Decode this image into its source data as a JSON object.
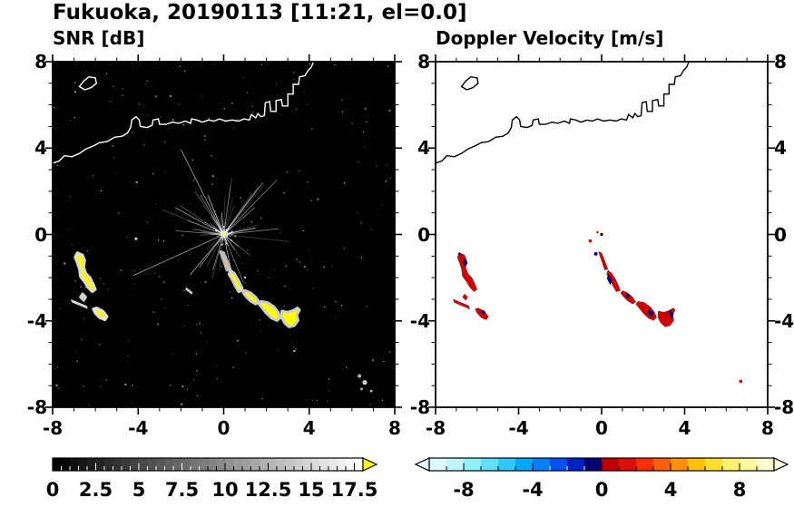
{
  "chart_data": {
    "type": "heatmap",
    "figure_title": "Fukuoka, 20190113 [11:21, el=0.0]",
    "panels": [
      {
        "id": "snr",
        "title": "SNR [dB]",
        "background": "#000000",
        "coast_color": "#ffffff",
        "xlim": [
          -8,
          8
        ],
        "ylim": [
          -8,
          8
        ],
        "xticks": [
          -8,
          -4,
          0,
          4,
          8
        ],
        "yticks": [
          8,
          4,
          0,
          -4,
          -8
        ],
        "xtick_labels": [
          "-8",
          "-4",
          "0",
          "4",
          "8"
        ],
        "ytick_labels": [
          "8",
          "4",
          "0",
          "-4",
          "-8"
        ],
        "colorbar": {
          "range": [
            0,
            18
          ],
          "tick_step": 0.5,
          "major_step": 2.5,
          "tick_labels": [
            "0",
            "2.5",
            "5",
            "7.5",
            "10",
            "12.5",
            "15",
            "17.5"
          ],
          "ramp": [
            "#000000",
            "#ffffff"
          ],
          "over_arrow_color": "#ffff00"
        }
      },
      {
        "id": "vel",
        "title": "Doppler Velocity [m/s]",
        "background": "#ffffff",
        "coast_color": "#000000",
        "xlim": [
          -8,
          8
        ],
        "ylim": [
          -8,
          8
        ],
        "xticks": [
          -8,
          -4,
          0,
          4,
          8
        ],
        "yticks": [
          8,
          4,
          0,
          -4,
          -8
        ],
        "xtick_labels": [
          "-8",
          "-4",
          "0",
          "4",
          "8"
        ],
        "ytick_labels": [
          "8",
          "4",
          "0",
          "-4",
          "-8"
        ],
        "ytick_labels_right": [
          "8",
          "4",
          "0",
          "-4",
          "-8"
        ],
        "colorbar": {
          "range": [
            -10,
            10
          ],
          "tick_step": 1,
          "major_step": 4,
          "tick_labels": [
            "-8",
            "-4",
            "0",
            "4",
            "8"
          ],
          "colors": [
            "#dffaff",
            "#bff5ff",
            "#8fefff",
            "#5fe0ff",
            "#2fc8ff",
            "#00aaff",
            "#0080ff",
            "#0050f0",
            "#0020c0",
            "#000070",
            "#c00000",
            "#e01000",
            "#ff3000",
            "#ff6000",
            "#ff9000",
            "#ffc000",
            "#ffe030",
            "#fff070",
            "#fffaa0",
            "#fffdd0"
          ],
          "under_arrow_color": "#eaffff",
          "over_arrow_color": "#fffde8"
        }
      }
    ],
    "map": {
      "coastline": [
        [
          -8.0,
          3.3
        ],
        [
          -7.7,
          3.4
        ],
        [
          -7.45,
          3.65
        ],
        [
          -7.1,
          3.6
        ],
        [
          -6.75,
          3.75
        ],
        [
          -6.45,
          3.95
        ],
        [
          -6.1,
          4.1
        ],
        [
          -5.8,
          4.25
        ],
        [
          -5.45,
          4.3
        ],
        [
          -5.1,
          4.5
        ],
        [
          -4.75,
          4.55
        ],
        [
          -4.5,
          4.7
        ],
        [
          -4.35,
          4.95
        ],
        [
          -4.3,
          5.3
        ],
        [
          -4.1,
          5.45
        ],
        [
          -3.95,
          5.3
        ],
        [
          -3.9,
          5.0
        ],
        [
          -3.6,
          4.95
        ],
        [
          -3.35,
          5.05
        ],
        [
          -3.3,
          5.3
        ],
        [
          -3.05,
          5.35
        ],
        [
          -3.0,
          5.1
        ],
        [
          -2.7,
          5.1
        ],
        [
          -2.4,
          5.2
        ],
        [
          -2.1,
          5.15
        ],
        [
          -1.8,
          5.25
        ],
        [
          -1.55,
          5.15
        ],
        [
          -1.5,
          5.35
        ],
        [
          -1.25,
          5.3
        ],
        [
          -1.0,
          5.2
        ],
        [
          -0.7,
          5.3
        ],
        [
          -0.45,
          5.25
        ],
        [
          -0.2,
          5.35
        ],
        [
          0.1,
          5.25
        ],
        [
          0.4,
          5.3
        ],
        [
          0.7,
          5.25
        ],
        [
          0.95,
          5.35
        ],
        [
          1.2,
          5.3
        ],
        [
          1.3,
          5.55
        ],
        [
          1.5,
          5.4
        ],
        [
          1.6,
          5.6
        ],
        [
          1.75,
          5.45
        ],
        [
          1.9,
          5.5
        ],
        [
          1.95,
          6.1
        ],
        [
          2.15,
          6.15
        ],
        [
          2.2,
          5.7
        ],
        [
          2.45,
          5.7
        ],
        [
          2.45,
          6.2
        ],
        [
          2.7,
          6.25
        ],
        [
          2.75,
          5.95
        ],
        [
          3.0,
          5.95
        ],
        [
          3.0,
          6.5
        ],
        [
          3.25,
          6.5
        ],
        [
          3.25,
          6.95
        ],
        [
          3.5,
          6.95
        ],
        [
          3.55,
          7.3
        ],
        [
          3.8,
          7.35
        ],
        [
          3.95,
          7.6
        ],
        [
          4.1,
          7.75
        ],
        [
          4.2,
          8.0
        ]
      ],
      "island": [
        [
          -6.75,
          6.85
        ],
        [
          -6.55,
          7.1
        ],
        [
          -6.3,
          7.3
        ],
        [
          -6.0,
          7.25
        ],
        [
          -5.95,
          7.0
        ],
        [
          -6.2,
          6.8
        ],
        [
          -6.5,
          6.7
        ]
      ]
    },
    "echoes": [
      {
        "pts": [
          [
            -6.85,
            -0.85
          ],
          [
            -6.6,
            -0.95
          ],
          [
            -6.5,
            -1.2
          ],
          [
            -6.55,
            -1.5
          ],
          [
            -6.45,
            -1.8
          ],
          [
            -6.25,
            -2.0
          ],
          [
            -6.1,
            -2.3
          ],
          [
            -6.0,
            -2.55
          ],
          [
            -6.15,
            -2.65
          ],
          [
            -6.35,
            -2.45
          ],
          [
            -6.5,
            -2.2
          ],
          [
            -6.7,
            -1.95
          ],
          [
            -6.75,
            -1.6
          ],
          [
            -6.85,
            -1.3
          ],
          [
            -6.95,
            -1.05
          ]
        ],
        "snr": "#ffff00",
        "halo": "#d8d8d8",
        "vel": "#d00000"
      },
      {
        "pts": [
          [
            -6.6,
            -2.75
          ],
          [
            -6.45,
            -2.9
          ],
          [
            -6.55,
            -3.05
          ],
          [
            -6.7,
            -2.9
          ]
        ],
        "snr": "#ffff00",
        "halo": "#cccccc",
        "vel": "#d00000"
      },
      {
        "pts": [
          [
            -7.15,
            -3.0
          ],
          [
            -6.4,
            -3.3
          ],
          [
            -6.35,
            -3.45
          ],
          [
            -7.1,
            -3.15
          ]
        ],
        "snr": "#d5d5d5",
        "halo": null,
        "vel": "#cc0000"
      },
      {
        "pts": [
          [
            -5.95,
            -3.4
          ],
          [
            -5.65,
            -3.55
          ],
          [
            -5.45,
            -3.8
          ],
          [
            -5.55,
            -3.95
          ],
          [
            -5.8,
            -3.85
          ],
          [
            -6.0,
            -3.65
          ],
          [
            -6.1,
            -3.45
          ]
        ],
        "snr": "#ffff00",
        "halo": "#e0e0e0",
        "vel": "#d00000"
      },
      {
        "pts": [
          [
            -0.15,
            -0.8
          ],
          [
            0.0,
            -0.85
          ],
          [
            0.3,
            -1.6
          ],
          [
            0.15,
            -1.65
          ]
        ],
        "snr": "#ffff00",
        "halo": "#bbbbbb",
        "vel": "#d00000"
      },
      {
        "pts": [
          [
            0.3,
            -1.65
          ],
          [
            0.5,
            -1.8
          ],
          [
            0.68,
            -2.1
          ],
          [
            0.85,
            -2.45
          ],
          [
            0.9,
            -2.6
          ],
          [
            0.7,
            -2.65
          ],
          [
            0.55,
            -2.4
          ],
          [
            0.4,
            -2.1
          ],
          [
            0.25,
            -1.85
          ]
        ],
        "snr": "#ffff00",
        "halo": "#cccccc",
        "vel": "#d00000"
      },
      {
        "pts": [
          [
            1.0,
            -2.6
          ],
          [
            1.25,
            -2.7
          ],
          [
            1.5,
            -2.9
          ],
          [
            1.65,
            -3.12
          ],
          [
            1.5,
            -3.22
          ],
          [
            1.25,
            -3.08
          ],
          [
            1.05,
            -2.88
          ],
          [
            0.92,
            -2.72
          ]
        ],
        "snr": "#ffff00",
        "halo": "#cccccc",
        "vel": "#d00000"
      },
      {
        "pts": [
          [
            1.75,
            -3.1
          ],
          [
            2.05,
            -3.15
          ],
          [
            2.35,
            -3.35
          ],
          [
            2.55,
            -3.6
          ],
          [
            2.65,
            -3.85
          ],
          [
            2.5,
            -3.98
          ],
          [
            2.25,
            -3.88
          ],
          [
            2.0,
            -3.65
          ],
          [
            1.8,
            -3.4
          ],
          [
            1.65,
            -3.22
          ]
        ],
        "snr": "#ffff00",
        "halo": "#cccccc",
        "vel": "#d00000"
      },
      {
        "pts": [
          [
            2.72,
            -3.55
          ],
          [
            3.0,
            -3.6
          ],
          [
            3.25,
            -3.52
          ],
          [
            3.45,
            -3.4
          ],
          [
            3.55,
            -3.5
          ],
          [
            3.42,
            -3.72
          ],
          [
            3.48,
            -3.98
          ],
          [
            3.3,
            -4.22
          ],
          [
            3.05,
            -4.28
          ],
          [
            2.85,
            -4.1
          ],
          [
            2.72,
            -3.85
          ]
        ],
        "snr": "#ffff00",
        "halo": "#cccccc",
        "vel": "#d00000"
      }
    ],
    "vel_patches": [
      {
        "pts": [
          [
            0.32,
            -1.8
          ],
          [
            0.5,
            -2.1
          ],
          [
            0.42,
            -2.35
          ],
          [
            0.26,
            -2.05
          ]
        ],
        "fill": "#000070"
      },
      {
        "pts": [
          [
            2.3,
            -3.45
          ],
          [
            2.5,
            -3.65
          ],
          [
            2.4,
            -3.85
          ],
          [
            2.2,
            -3.6
          ]
        ],
        "fill": "#000070"
      },
      {
        "pts": [
          [
            3.3,
            -3.5
          ],
          [
            3.47,
            -3.7
          ],
          [
            3.4,
            -3.92
          ],
          [
            3.22,
            -3.65
          ]
        ],
        "fill": "#000070"
      },
      {
        "pts": [
          [
            -6.6,
            -1.1
          ],
          [
            -6.45,
            -1.3
          ],
          [
            -6.55,
            -1.5
          ],
          [
            -6.7,
            -1.3
          ]
        ],
        "fill": "#000070"
      },
      {
        "x": 1.25,
        "y": -2.85,
        "r": 2.0,
        "fill": "#000070"
      },
      {
        "x": -0.28,
        "y": -0.9,
        "r": 2.0,
        "fill": "#000070"
      },
      {
        "x": -5.7,
        "y": -3.6,
        "r": 2.0,
        "fill": "#000070"
      },
      {
        "x": -6.85,
        "y": -0.9,
        "r": 1.5,
        "fill": "#000070"
      }
    ],
    "snr_marks": [
      {
        "x": 0,
        "y": 0,
        "r": 2.2,
        "fill": "#ffff66"
      },
      {
        "x": -4.1,
        "y": -0.2,
        "r": 1.5,
        "fill": "#dddddd"
      },
      {
        "x": 6.35,
        "y": -6.55,
        "r": 2.0,
        "fill": "#b0b0b0"
      },
      {
        "x": 6.6,
        "y": -6.85,
        "r": 2.6,
        "fill": "#cfcfcf"
      },
      {
        "x": 6.45,
        "y": -7.15,
        "r": 1.6,
        "fill": "#9a9a9a"
      },
      {
        "x": 6.9,
        "y": -7.25,
        "r": 1.4,
        "fill": "#bdbdbd"
      },
      {
        "pts": [
          [
            -1.75,
            -2.45
          ],
          [
            -1.45,
            -2.68
          ],
          [
            -1.5,
            -2.78
          ],
          [
            -1.8,
            -2.55
          ]
        ],
        "fill": "#cccccc"
      }
    ],
    "vel_marks": [
      {
        "x": 0,
        "y": 0,
        "r": 1.6,
        "fill": "#000000"
      },
      {
        "x": -0.55,
        "y": -0.3,
        "r": 1.8,
        "fill": "#d00000"
      },
      {
        "x": -0.2,
        "y": 0.1,
        "r": 1.2,
        "fill": "#d00000"
      },
      {
        "x": 6.7,
        "y": -6.8,
        "r": 1.8,
        "fill": "#d00000"
      }
    ],
    "spokes": {
      "count": 90,
      "seed": 5
    },
    "noise": {
      "count": 240,
      "seed": 11
    }
  }
}
